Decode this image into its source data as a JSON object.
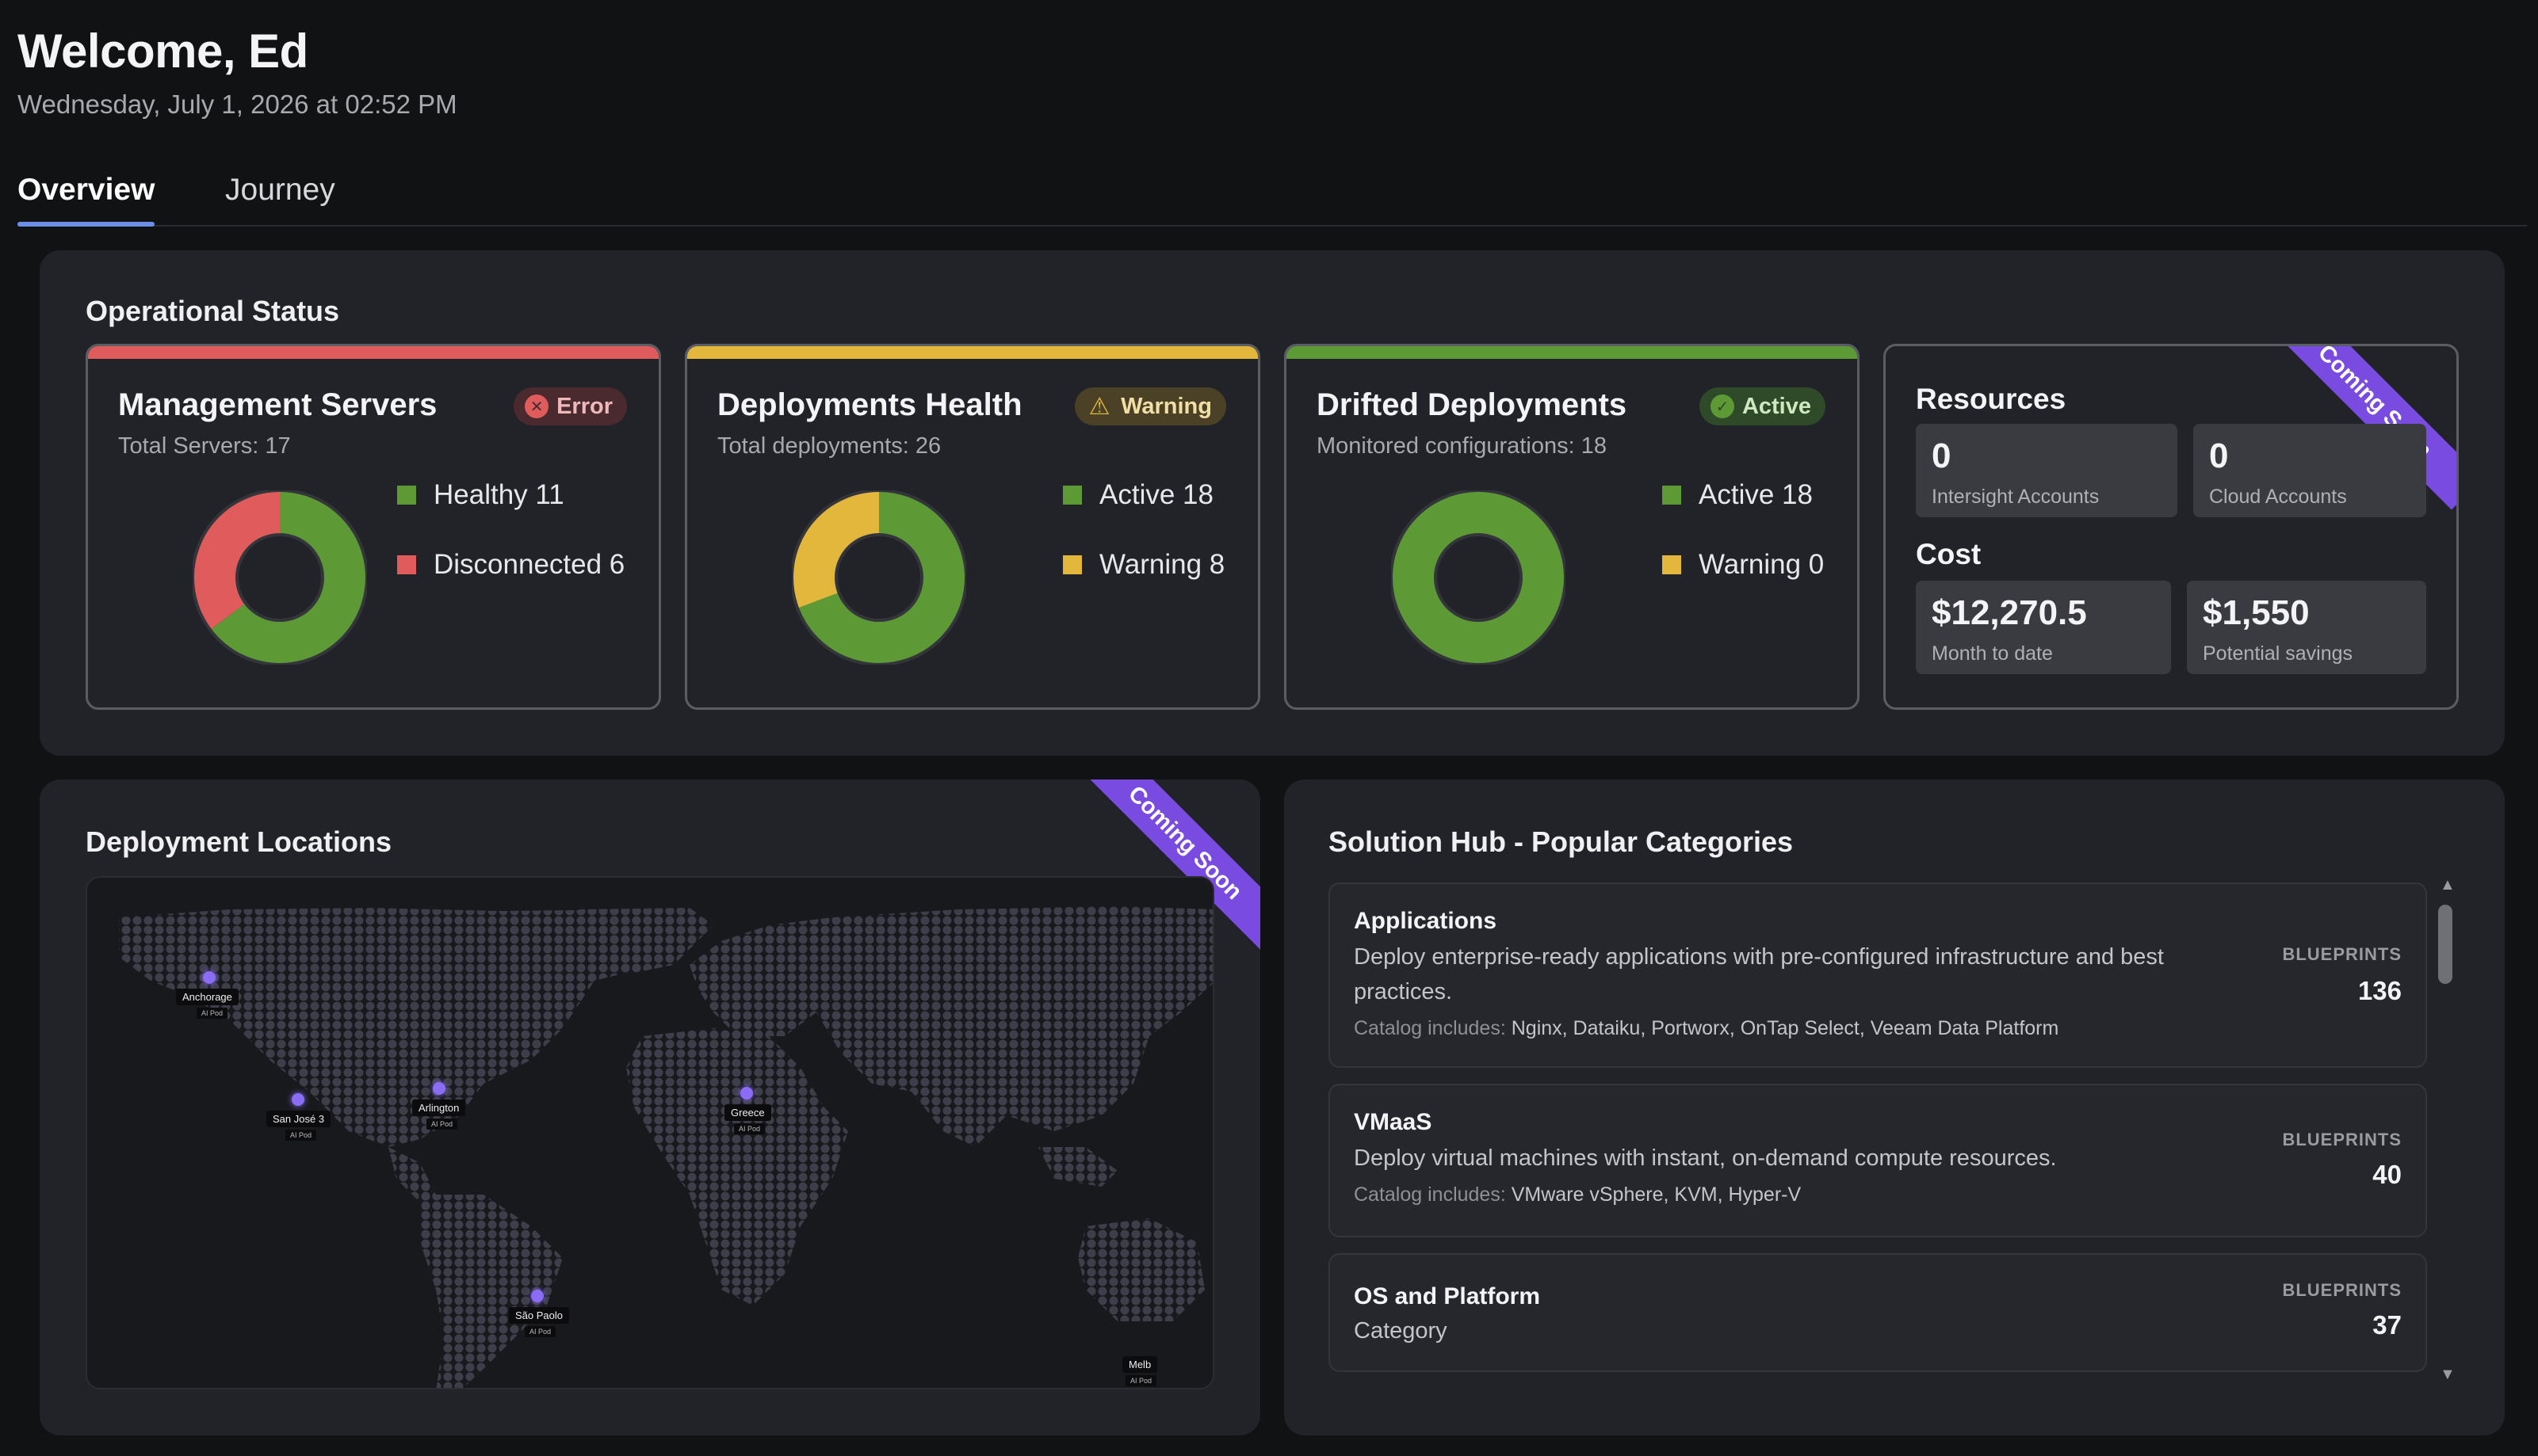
{
  "header": {
    "welcome": "Welcome, Ed",
    "datetime": "Wednesday, July 1, 2026 at 02:52 PM"
  },
  "tabs": [
    {
      "label": "Overview",
      "active": true
    },
    {
      "label": "Journey",
      "active": false
    }
  ],
  "operational_status": {
    "title": "Operational Status",
    "cards": [
      {
        "title": "Management Servers",
        "subtitle": "Total Servers: 17",
        "badge": "Error",
        "badge_icon": "error-x-icon",
        "accent": "#e05c5c",
        "legend": [
          {
            "label": "Healthy 11",
            "value": 11,
            "color": "#5d9a35"
          },
          {
            "label": "Disconnected 6",
            "value": 6,
            "color": "#e05c5c"
          }
        ]
      },
      {
        "title": "Deployments Health",
        "subtitle": "Total deployments: 26",
        "badge": "Warning",
        "badge_icon": "warning-triangle-icon",
        "accent": "#e3b73c",
        "legend": [
          {
            "label": "Active 18",
            "value": 18,
            "color": "#5d9a35"
          },
          {
            "label": "Warning 8",
            "value": 8,
            "color": "#e3b73c"
          }
        ]
      },
      {
        "title": "Drifted Deployments",
        "subtitle": "Monitored configurations: 18",
        "badge": "Active",
        "badge_icon": "check-circle-icon",
        "accent": "#5d9a35",
        "legend": [
          {
            "label": "Active 18",
            "value": 18,
            "color": "#5d9a35"
          },
          {
            "label": "Warning 0",
            "value": 0,
            "color": "#e3b73c"
          }
        ]
      }
    ],
    "resources": {
      "title": "Resources",
      "ribbon": "Coming Soon",
      "intersight_value": "0",
      "intersight_label": "Intersight Accounts",
      "cloud_value": "0",
      "cloud_label": "Cloud Accounts",
      "cost_title": "Cost",
      "mtd_value": "$12,270.5",
      "mtd_label": "Month to date",
      "savings_value": "$1,550",
      "savings_label": "Potential savings"
    }
  },
  "deployment_locations": {
    "title": "Deployment Locations",
    "ribbon": "Coming Soon",
    "pins": [
      {
        "name": "Anchorage",
        "sub": "AI Pod"
      },
      {
        "name": "San José 3",
        "sub": "AI Pod"
      },
      {
        "name": "Arlington",
        "sub": "AI Pod"
      },
      {
        "name": "Greece",
        "sub": "AI Pod"
      },
      {
        "name": "São Paolo",
        "sub": "AI Pod"
      },
      {
        "name": "Melb",
        "sub": "AI Pod"
      }
    ],
    "controls": {
      "reset": "↻",
      "zoom_in": "+",
      "zoom_out": "-"
    }
  },
  "solution_hub": {
    "title": "Solution Hub - Popular Categories",
    "blueprints_label": "BLUEPRINTS",
    "catalog_prefix": "Catalog includes:",
    "items": [
      {
        "name": "Applications",
        "description": "Deploy enterprise-ready applications with pre-configured infrastructure and best practices.",
        "catalog": "Nginx, Dataiku, Portworx, OnTap Select, Veeam Data Platform",
        "blueprints": "136"
      },
      {
        "name": "VMaaS",
        "description": "Deploy virtual machines with instant, on-demand compute resources.",
        "catalog": "VMware vSphere, KVM, Hyper-V",
        "blueprints": "40"
      },
      {
        "name": "OS and Platform",
        "description": "Category",
        "catalog": "",
        "blueprints": "37"
      }
    ]
  },
  "colors": {
    "healthy": "#5d9a35",
    "error": "#e05c5c",
    "warning": "#e3b73c",
    "ribbon": "#7a4be0",
    "tab_underline": "#6d8fe8"
  }
}
